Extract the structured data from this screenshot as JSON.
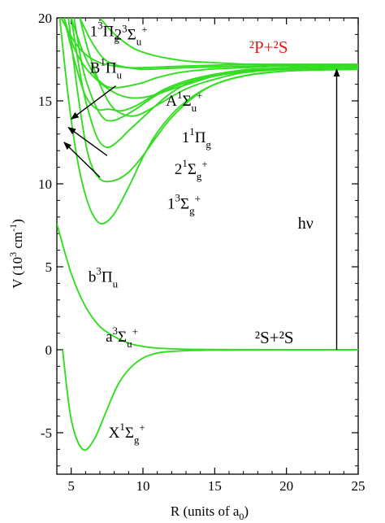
{
  "chart_data": {
    "type": "line",
    "xlabel": "R (units of a₀)",
    "ylabel": "V (10³ cm⁻¹)",
    "xlim": [
      4,
      25
    ],
    "ylim": [
      -7.5,
      20
    ],
    "x_ticks": [
      "5",
      "10",
      "15",
      "20",
      "25"
    ],
    "y_ticks": [
      "-5",
      "0",
      "5",
      "10",
      "15",
      "20"
    ],
    "line_color": "#33dd22",
    "series": [
      {
        "name": "X¹Σg⁺",
        "x": [
          4.4,
          5.0,
          5.8,
          6.6,
          7.4,
          8.2,
          9.0,
          10.0,
          11.0,
          12.0,
          13.5,
          15.0,
          17.0,
          20.0,
          25.0
        ],
        "y": [
          0.0,
          -4.2,
          -6.0,
          -5.4,
          -3.8,
          -2.2,
          -1.2,
          -0.5,
          -0.2,
          -0.1,
          -0.04,
          -0.02,
          -0.01,
          0.0,
          0.0
        ]
      },
      {
        "name": "a³Σu⁺",
        "x": [
          4.0,
          5.0,
          6.0,
          7.0,
          8.0,
          9.0,
          10.0,
          11.0,
          12.5,
          14.0,
          16.0,
          20.0,
          25.0
        ],
        "y": [
          7.6,
          4.6,
          2.6,
          1.4,
          0.8,
          0.4,
          0.2,
          0.1,
          0.04,
          0.02,
          0.01,
          0.0,
          0.0
        ]
      },
      {
        "name": "b³Πu",
        "x": [
          4.2,
          4.8,
          5.4,
          6.0,
          6.6,
          7.2,
          8.0,
          9.0,
          10.0,
          11.0,
          12.5,
          14.5,
          17.0,
          20.0,
          25.0
        ],
        "y": [
          20.0,
          15.2,
          11.6,
          9.3,
          8.0,
          7.6,
          8.2,
          9.8,
          11.6,
          13.1,
          14.6,
          15.8,
          16.5,
          16.8,
          16.9
        ]
      },
      {
        "name": "1³Σg⁺",
        "x": [
          4.8,
          5.5,
          6.2,
          7.0,
          8.0,
          9.0,
          10.0,
          11.0,
          12.0,
          13.5,
          15.0,
          17.0,
          20.0,
          25.0
        ],
        "y": [
          20.0,
          15.2,
          11.7,
          10.3,
          10.2,
          10.7,
          11.7,
          12.9,
          14.0,
          15.2,
          16.0,
          16.5,
          16.8,
          17.0
        ]
      },
      {
        "name": "2¹Σg⁺",
        "x": [
          5.0,
          5.8,
          6.5,
          7.0,
          7.6,
          8.3,
          9.0,
          10.0,
          11.0,
          12.0,
          13.5,
          15.5,
          18.0,
          21.0,
          25.0
        ],
        "y": [
          20.0,
          15.8,
          13.5,
          12.5,
          12.2,
          12.6,
          13.2,
          14.0,
          14.8,
          15.5,
          16.2,
          16.6,
          16.9,
          17.0,
          17.1
        ]
      },
      {
        "name": "1¹Πg",
        "x": [
          5.2,
          5.8,
          6.5,
          7.2,
          7.8,
          8.5,
          9.5,
          10.5,
          11.5,
          13.0,
          15.0,
          17.5,
          21.0,
          25.0
        ],
        "y": [
          20.0,
          17.0,
          15.1,
          14.0,
          13.8,
          14.0,
          14.5,
          15.1,
          15.6,
          16.1,
          16.5,
          16.8,
          17.0,
          17.1
        ]
      },
      {
        "name": "A¹Σu⁺",
        "x": [
          4.5,
          5.3,
          6.0,
          6.8,
          7.6,
          8.5,
          9.5,
          10.5,
          11.5,
          13.0,
          15.0,
          17.5,
          21.0,
          25.0
        ],
        "y": [
          20.0,
          17.2,
          15.3,
          14.5,
          14.5,
          14.4,
          14.7,
          15.2,
          15.7,
          16.2,
          16.6,
          16.9,
          17.0,
          17.1
        ]
      },
      {
        "name": "B¹Πu",
        "x": [
          5.0,
          5.8,
          6.6,
          7.4,
          8.2,
          9.0,
          10.0,
          11.0,
          12.5,
          14.5,
          17.0,
          20.0,
          25.0
        ],
        "y": [
          20.0,
          18.0,
          16.6,
          15.9,
          15.8,
          15.9,
          16.1,
          16.4,
          16.7,
          16.9,
          17.0,
          17.1,
          17.15
        ]
      },
      {
        "name": "1³Πg",
        "x": [
          5.6,
          6.4,
          7.2,
          8.0,
          9.0,
          10.0,
          11.5,
          13.0,
          15.0,
          18.0,
          25.0
        ],
        "y": [
          20.0,
          18.6,
          17.6,
          17.2,
          17.0,
          16.9,
          16.95,
          17.0,
          17.05,
          17.1,
          17.15
        ]
      },
      {
        "name": "2³Σu⁺",
        "x": [
          7.0,
          7.8,
          8.6,
          9.5,
          10.5,
          11.5,
          13.0,
          15.0,
          17.5,
          21.0,
          25.0
        ],
        "y": [
          20.0,
          19.2,
          18.6,
          18.1,
          17.8,
          17.6,
          17.4,
          17.3,
          17.2,
          17.15,
          17.15
        ]
      },
      {
        "name": "",
        "x": [
          4.3,
          5.2,
          6.0,
          7.0,
          8.0,
          9.0,
          10.0,
          11.5,
          13.0,
          15.0,
          18.0,
          25.0
        ],
        "y": [
          20.0,
          18.6,
          17.8,
          17.3,
          17.1,
          17.0,
          17.0,
          17.05,
          17.1,
          17.15,
          17.2,
          17.2
        ]
      },
      {
        "name": "",
        "x": [
          4.5,
          5.2,
          6.0,
          7.0,
          8.0,
          9.0,
          10.0,
          11.0,
          12.0,
          13.5,
          15.0,
          17.0,
          20.0,
          25.0
        ],
        "y": [
          20.0,
          18.2,
          17.0,
          16.1,
          15.5,
          15.2,
          15.2,
          15.4,
          15.7,
          16.1,
          16.5,
          16.8,
          17.0,
          17.1
        ]
      },
      {
        "name": "",
        "x": [
          5.6,
          6.2,
          7.0,
          7.8,
          8.6,
          9.5,
          10.5,
          11.5,
          12.5,
          13.5,
          15.0,
          17.0,
          20.0,
          25.0
        ],
        "y": [
          20.0,
          18.0,
          16.0,
          14.7,
          14.2,
          14.1,
          14.5,
          15.0,
          15.5,
          15.9,
          16.3,
          16.7,
          16.9,
          17.0
        ]
      }
    ],
    "arrows": [
      {
        "x_from": 7.0,
        "y_from": 10.4,
        "x_to": 4.5,
        "y_to": 12.5
      },
      {
        "x_from": 7.5,
        "y_from": 11.7,
        "x_to": 4.8,
        "y_to": 13.4
      },
      {
        "x_from": 8.1,
        "y_from": 15.9,
        "x_to": 5.0,
        "y_to": 13.9
      },
      {
        "x_from": 23.5,
        "y_from": 0.0,
        "x_to": 23.5,
        "y_to": 16.9
      }
    ],
    "annotations": [
      {
        "base": "2",
        "sup": "3",
        "mid": "Σ",
        "sub": "u",
        "sup2": "+",
        "x": 8.0,
        "y": 18.7,
        "size": 19
      },
      {
        "base": "1",
        "sup": "3",
        "mid": "Π",
        "sub": "g",
        "sup2": "",
        "x": 6.3,
        "y": 18.9,
        "size": 19
      },
      {
        "base": "B",
        "sup": "1",
        "mid": "Π",
        "sub": "u",
        "sup2": "",
        "x": 6.3,
        "y": 16.7,
        "size": 19
      },
      {
        "base": "A",
        "sup": "1",
        "mid": "Σ",
        "sub": "u",
        "sup2": "+",
        "x": 11.6,
        "y": 14.7,
        "size": 19
      },
      {
        "base": "1",
        "sup": "1",
        "mid": "Π",
        "sub": "g",
        "sup2": "",
        "x": 12.7,
        "y": 12.5,
        "size": 19
      },
      {
        "base": "2",
        "sup": "1",
        "mid": "Σ",
        "sub": "g",
        "sup2": "+",
        "x": 12.2,
        "y": 10.6,
        "size": 19
      },
      {
        "base": "1",
        "sup": "3",
        "mid": "Σ",
        "sub": "g",
        "sup2": "+",
        "x": 11.7,
        "y": 8.5,
        "size": 19
      },
      {
        "base": "b",
        "sup": "3",
        "mid": "Π",
        "sub": "u",
        "sup2": "",
        "x": 6.2,
        "y": 4.1,
        "size": 19
      },
      {
        "base": "a",
        "sup": "3",
        "mid": "Σ",
        "sub": "u",
        "sup2": "+",
        "x": 7.4,
        "y": 0.5,
        "size": 19
      },
      {
        "base": "X",
        "sup": "1",
        "mid": "Σ",
        "sub": "g",
        "sup2": "+",
        "x": 7.6,
        "y": -5.3,
        "size": 19
      }
    ],
    "h_nu": "hν",
    "h_nu_pos": {
      "x": 20.8,
      "y": 7.3
    },
    "asymptote_upper": "²P+²S",
    "asymptote_upper_pos": {
      "x": 17.4,
      "y": 17.9
    },
    "asymptote_lower": "²S+²S",
    "asymptote_lower_pos": {
      "x": 17.8,
      "y": 0.4
    }
  }
}
